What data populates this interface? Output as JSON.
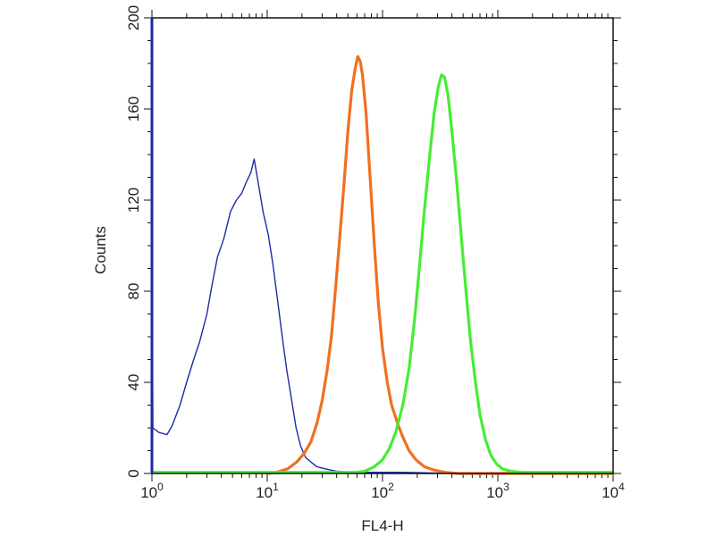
{
  "chart_data": {
    "type": "line",
    "xlabel": "FL4-H",
    "ylabel": "Counts",
    "xscale": "log",
    "xlim": [
      1,
      10000
    ],
    "ylim": [
      0,
      200
    ],
    "grid": false,
    "legend": "none",
    "x_ticks": [
      {
        "base": "10",
        "exp": "0",
        "value": 1
      },
      {
        "base": "10",
        "exp": "1",
        "value": 10
      },
      {
        "base": "10",
        "exp": "2",
        "value": 100
      },
      {
        "base": "10",
        "exp": "3",
        "value": 1000
      },
      {
        "base": "10",
        "exp": "4",
        "value": 10000
      }
    ],
    "y_ticks": [
      "0",
      "40",
      "80",
      "120",
      "160",
      "200"
    ],
    "series": [
      {
        "color": "#1f2aa6",
        "points": [
          [
            1.0,
            105
          ],
          [
            1.02,
            20
          ],
          [
            1.15,
            18
          ],
          [
            1.35,
            17
          ],
          [
            1.5,
            21
          ],
          [
            1.75,
            30
          ],
          [
            2.0,
            40
          ],
          [
            2.3,
            50
          ],
          [
            2.6,
            58
          ],
          [
            3.0,
            70
          ],
          [
            3.3,
            82
          ],
          [
            3.7,
            95
          ],
          [
            4.2,
            103
          ],
          [
            4.8,
            115
          ],
          [
            5.4,
            120
          ],
          [
            6.0,
            123
          ],
          [
            6.6,
            128
          ],
          [
            7.2,
            132
          ],
          [
            7.7,
            138
          ],
          [
            8.2,
            130
          ],
          [
            9.2,
            115
          ],
          [
            10.2,
            105
          ],
          [
            11.2,
            92
          ],
          [
            12.3,
            76
          ],
          [
            13.5,
            60
          ],
          [
            14.8,
            45
          ],
          [
            16.2,
            33
          ],
          [
            17.8,
            20
          ],
          [
            19.5,
            12
          ],
          [
            21.5,
            7
          ],
          [
            24,
            5
          ],
          [
            27,
            3
          ],
          [
            32,
            2
          ],
          [
            40,
            1
          ],
          [
            60,
            0.5
          ],
          [
            150,
            0.5
          ],
          [
            400,
            0
          ],
          [
            10000,
            0
          ]
        ]
      },
      {
        "color": "#f07020",
        "points": [
          [
            10,
            0
          ],
          [
            12,
            0.5
          ],
          [
            15,
            2
          ],
          [
            18,
            5
          ],
          [
            21,
            9
          ],
          [
            24,
            14
          ],
          [
            27,
            22
          ],
          [
            30,
            32
          ],
          [
            33,
            45
          ],
          [
            36,
            60
          ],
          [
            39,
            80
          ],
          [
            42,
            100
          ],
          [
            46,
            125
          ],
          [
            50,
            150
          ],
          [
            54,
            168
          ],
          [
            58,
            178
          ],
          [
            61,
            183
          ],
          [
            64,
            181
          ],
          [
            67,
            175
          ],
          [
            72,
            158
          ],
          [
            78,
            130
          ],
          [
            85,
            100
          ],
          [
            92,
            75
          ],
          [
            100,
            55
          ],
          [
            110,
            40
          ],
          [
            120,
            30
          ],
          [
            135,
            22
          ],
          [
            150,
            16
          ],
          [
            170,
            10
          ],
          [
            195,
            6
          ],
          [
            230,
            3
          ],
          [
            280,
            1.5
          ],
          [
            350,
            0.5
          ],
          [
            450,
            0
          ],
          [
            10000,
            0
          ]
        ]
      },
      {
        "color": "#44ee33",
        "points": [
          [
            1,
            0.5
          ],
          [
            60,
            0.5
          ],
          [
            70,
            1
          ],
          [
            85,
            3
          ],
          [
            100,
            6
          ],
          [
            115,
            11
          ],
          [
            130,
            18
          ],
          [
            150,
            30
          ],
          [
            170,
            46
          ],
          [
            190,
            68
          ],
          [
            210,
            92
          ],
          [
            230,
            115
          ],
          [
            255,
            138
          ],
          [
            280,
            158
          ],
          [
            305,
            170
          ],
          [
            325,
            175
          ],
          [
            345,
            174
          ],
          [
            370,
            166
          ],
          [
            400,
            150
          ],
          [
            440,
            128
          ],
          [
            480,
            105
          ],
          [
            530,
            80
          ],
          [
            580,
            58
          ],
          [
            640,
            40
          ],
          [
            700,
            26
          ],
          [
            780,
            15
          ],
          [
            870,
            8
          ],
          [
            980,
            4
          ],
          [
            1100,
            2
          ],
          [
            1300,
            1
          ],
          [
            1600,
            0.5
          ],
          [
            2500,
            0.5
          ],
          [
            10000,
            0.5
          ]
        ]
      }
    ]
  }
}
